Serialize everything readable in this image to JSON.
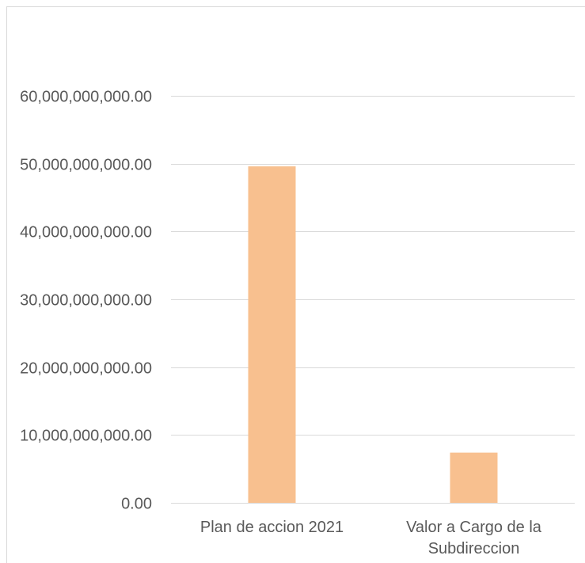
{
  "chart_data": {
    "type": "bar",
    "title": "",
    "xlabel": "",
    "ylabel": "",
    "categories": [
      "Plan de accion 2021",
      "Valor a Cargo de la Subdireccion"
    ],
    "category_lines": [
      [
        "Plan de accion 2021"
      ],
      [
        "Valor a Cargo de la",
        "Subdireccion"
      ]
    ],
    "series": [
      {
        "values": [
          49600000000,
          7400000000
        ]
      }
    ],
    "ylim": [
      0,
      60000000000
    ],
    "yticks": [
      0,
      10000000000,
      20000000000,
      30000000000,
      40000000000,
      50000000000,
      60000000000
    ],
    "ytick_labels": [
      "0.00",
      "10,000,000,000.00",
      "20,000,000,000.00",
      "30,000,000,000.00",
      "40,000,000,000.00",
      "50,000,000,000.00",
      "60,000,000,000.00"
    ],
    "grid": true,
    "legend": "none",
    "colors": {
      "bar": "#F8C08F",
      "grid": "#D9D9D9",
      "text": "#595959",
      "frame": "#D9D9D9"
    }
  }
}
